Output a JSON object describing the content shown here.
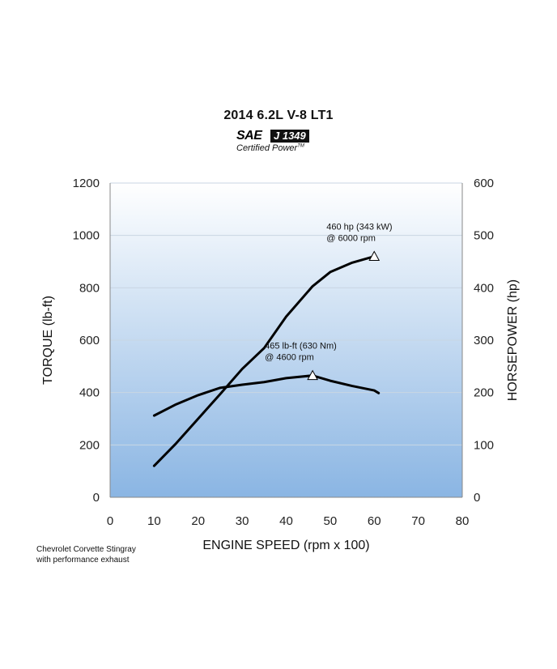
{
  "title": "2014 6.2L V-8 LT1",
  "logo": {
    "sae": "SAE",
    "badge": "J 1349",
    "certified": "Certified Power",
    "tm": "TM"
  },
  "footnote": {
    "line1": "Chevrolet Corvette Stingray",
    "line2": "with performance exhaust"
  },
  "colors": {
    "gradient_top": "#ffffff",
    "gradient_bottom": "#8ab5e3",
    "line": "#000000"
  },
  "chart_data": {
    "type": "line",
    "title": "2014 6.2L V-8 LT1",
    "xlabel": "ENGINE SPEED (rpm x 100)",
    "ylabel": "TORQUE (lb-ft)",
    "y2label": "HORSEPOWER (hp)",
    "xlim": [
      0,
      80
    ],
    "ylim": [
      0,
      1200
    ],
    "y2lim": [
      0,
      600
    ],
    "x_ticks": [
      0,
      10,
      20,
      30,
      40,
      50,
      60,
      70,
      80
    ],
    "y_ticks": [
      0,
      200,
      400,
      600,
      800,
      1000,
      1200
    ],
    "y2_ticks": [
      0,
      100,
      200,
      300,
      400,
      500,
      600
    ],
    "grid": true,
    "series": [
      {
        "axis": "left",
        "x": [
          10,
          15,
          20,
          25,
          30,
          35,
          40,
          46,
          50,
          55,
          60,
          61
        ],
        "values": [
          312,
          355,
          390,
          418,
          430,
          440,
          455,
          465,
          445,
          425,
          408,
          398
        ]
      },
      {
        "axis": "right",
        "x": [
          10,
          15,
          20,
          25,
          30,
          35,
          40,
          46,
          50,
          55,
          60
        ],
        "values": [
          60,
          103,
          150,
          197,
          245,
          285,
          345,
          403,
          430,
          448,
          460
        ]
      }
    ],
    "annotations": [
      {
        "series": 1,
        "x": 60,
        "y": 460,
        "line1": "460 hp (343 kW)",
        "line2": "@ 6000 rpm"
      },
      {
        "series": 0,
        "x": 46,
        "y": 465,
        "line1": "465 lb-ft (630 Nm)",
        "line2": "@ 4600 rpm"
      }
    ]
  }
}
